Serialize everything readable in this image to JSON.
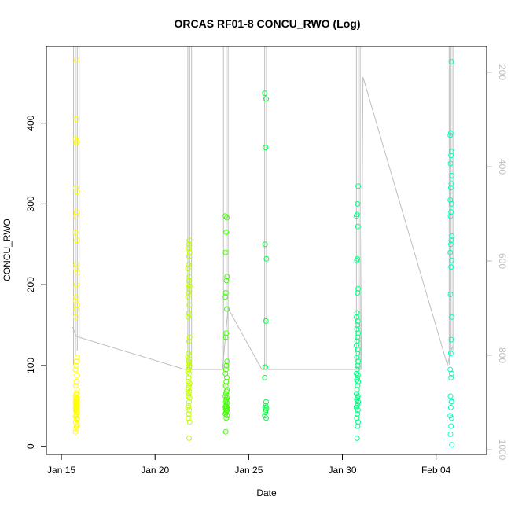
{
  "chart_data": {
    "type": "scatter",
    "title": "ORCAS RF01-8 CONCU_RWO (Log)",
    "xlabel": "Date",
    "ylabel": "CONCU_RWO",
    "x_tick_labels": [
      "Jan 15",
      "Jan 20",
      "Jan 25",
      "Jan 30",
      "Feb 04"
    ],
    "x_ticks_day": [
      15,
      20,
      25,
      30,
      35
    ],
    "xlim_day": [
      14.2,
      37.7
    ],
    "y_ticks": [
      0,
      100,
      200,
      300,
      400
    ],
    "ylim": [
      -10,
      495
    ],
    "right_axis": {
      "ticks": [
        200,
        400,
        600,
        800,
        1000
      ],
      "lim": [
        1010,
        145
      ],
      "color": "#bebebe"
    },
    "grid": false,
    "legend": "none",
    "series": [
      {
        "color": "#ffff00",
        "flight_day": 15.8,
        "values": [
          18,
          22,
          25,
          28,
          30,
          33,
          35,
          37,
          38,
          40,
          42,
          44,
          45,
          46,
          47,
          48,
          49,
          50,
          51,
          52,
          53,
          54,
          55,
          56,
          57,
          58,
          59,
          60,
          62,
          64,
          66,
          70,
          75,
          80,
          88,
          95,
          100,
          105,
          110,
          160,
          170,
          175,
          180,
          185,
          200,
          215,
          220,
          225,
          255,
          265,
          285,
          290,
          315,
          320,
          375,
          378,
          380,
          405,
          478
        ]
      },
      {
        "color": "#bfff00",
        "flight_day": 21.8,
        "values": [
          10,
          30,
          35,
          40,
          45,
          48,
          50,
          55,
          60,
          62,
          65,
          68,
          70,
          72,
          75,
          78,
          80,
          85,
          90,
          92,
          95,
          98,
          100,
          102,
          105,
          108,
          110,
          115,
          130,
          135,
          160,
          165,
          175,
          185,
          190,
          195,
          198,
          200,
          205,
          210,
          220,
          225,
          235,
          240,
          245,
          250,
          255
        ]
      },
      {
        "color": "#40ff00",
        "flight_day": 23.8,
        "values": [
          18,
          35,
          38,
          40,
          42,
          44,
          45,
          46,
          47,
          48,
          49,
          50,
          52,
          54,
          55,
          58,
          60,
          62,
          65,
          68,
          70,
          75,
          80,
          85,
          90,
          95,
          100,
          105,
          135,
          140,
          170,
          185,
          190,
          205,
          210,
          240,
          265,
          283,
          285
        ]
      },
      {
        "color": "#00ff40",
        "flight_day": 25.9,
        "values": [
          35,
          38,
          42,
          45,
          47,
          48,
          50,
          55,
          85,
          98,
          155,
          232,
          250,
          370,
          430,
          437
        ]
      },
      {
        "color": "#00ff80",
        "flight_day": 30.8,
        "values": [
          10,
          25,
          30,
          35,
          40,
          45,
          48,
          50,
          52,
          55,
          58,
          60,
          62,
          65,
          70,
          75,
          80,
          82,
          85,
          88,
          90,
          95,
          100,
          105,
          110,
          115,
          120,
          125,
          130,
          135,
          140,
          145,
          150,
          155,
          160,
          165,
          190,
          195,
          230,
          232,
          272,
          285,
          287,
          300,
          322
        ]
      },
      {
        "color": "#00ffbf",
        "flight_day": 35.8,
        "values": [
          2,
          15,
          25,
          35,
          38,
          48,
          55,
          56,
          62,
          85,
          90,
          95,
          115,
          132,
          160,
          188,
          222,
          230,
          240,
          250,
          255,
          260,
          285,
          290,
          300,
          305,
          320,
          325,
          335,
          350,
          360,
          365,
          385,
          388,
          476
        ]
      }
    ],
    "track": {
      "color": "#bebebe",
      "right_axis_points": [
        [
          15.6,
          740
        ],
        [
          15.8,
          760
        ],
        [
          21.6,
          830
        ],
        [
          21.9,
          830
        ],
        [
          23.6,
          830
        ],
        [
          23.9,
          700
        ],
        [
          25.7,
          830
        ],
        [
          26.0,
          830
        ],
        [
          30.7,
          830
        ],
        [
          31.0,
          830
        ],
        [
          31.1,
          210
        ],
        [
          35.6,
          820
        ],
        [
          35.8,
          790
        ],
        [
          35.9,
          780
        ]
      ],
      "vertical_segments": [
        [
          15.65,
          145,
          820
        ],
        [
          15.75,
          145,
          800
        ],
        [
          15.85,
          145,
          790
        ],
        [
          15.95,
          145,
          770
        ],
        [
          21.75,
          145,
          830
        ],
        [
          21.85,
          145,
          830
        ],
        [
          21.95,
          145,
          830
        ],
        [
          23.65,
          145,
          830
        ],
        [
          23.8,
          145,
          700
        ],
        [
          23.9,
          145,
          830
        ],
        [
          25.85,
          145,
          830
        ],
        [
          25.95,
          145,
          830
        ],
        [
          30.75,
          145,
          830
        ],
        [
          30.85,
          145,
          830
        ],
        [
          30.95,
          145,
          830
        ],
        [
          31.05,
          145,
          210
        ],
        [
          35.7,
          145,
          820
        ],
        [
          35.8,
          145,
          800
        ],
        [
          35.9,
          145,
          790
        ]
      ]
    }
  }
}
